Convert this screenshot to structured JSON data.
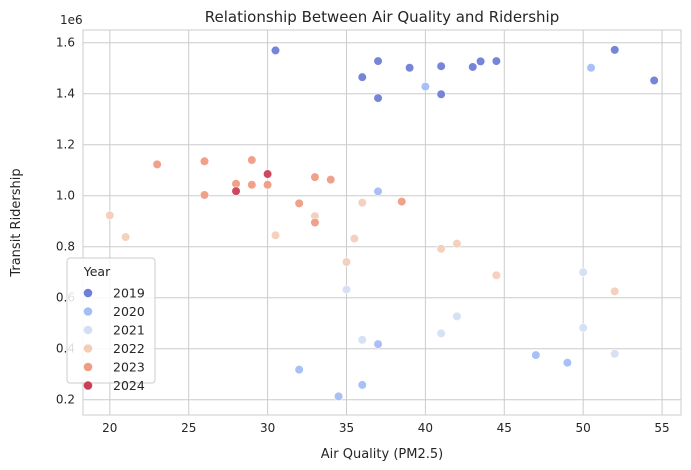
{
  "chart_data": {
    "type": "scatter",
    "title": "Relationship Between Air Quality and Ridership",
    "xlabel": "Air Quality (PM2.5)",
    "ylabel": "Transit Ridership",
    "y_offset_label": "1e6",
    "xlim": [
      18.3,
      56.2
    ],
    "ylim": [
      140000,
      1650000
    ],
    "x_ticks": [
      20,
      25,
      30,
      35,
      40,
      45,
      50,
      55
    ],
    "y_ticks": [
      200000,
      400000,
      600000,
      800000,
      1000000,
      1200000,
      1400000,
      1600000
    ],
    "y_tick_labels": [
      "0.2",
      "0.4",
      "0.6",
      "0.8",
      "1.0",
      "1.2",
      "1.4",
      "1.6"
    ],
    "grid": true,
    "legend": {
      "title": "Year",
      "placement": "lower-left"
    },
    "series": [
      {
        "name": "2019",
        "color": "#6f7ed6",
        "points": [
          [
            30.5,
            1570000
          ],
          [
            36,
            1465000
          ],
          [
            37,
            1528000
          ],
          [
            37,
            1383000
          ],
          [
            39,
            1502000
          ],
          [
            41,
            1508000
          ],
          [
            41,
            1398000
          ],
          [
            43,
            1505000
          ],
          [
            43.5,
            1527000
          ],
          [
            44.5,
            1528000
          ],
          [
            52,
            1572000
          ],
          [
            54.5,
            1452000
          ]
        ]
      },
      {
        "name": "2020",
        "color": "#a3bdf5",
        "points": [
          [
            40,
            1428000
          ],
          [
            50.5,
            1502000
          ],
          [
            37,
            1017000
          ],
          [
            32,
            318000
          ],
          [
            34.5,
            213000
          ],
          [
            36,
            258000
          ],
          [
            37,
            418000
          ],
          [
            47,
            375000
          ],
          [
            49,
            345000
          ]
        ]
      },
      {
        "name": "2021",
        "color": "#d4dff4",
        "points": [
          [
            35,
            632000
          ],
          [
            36,
            435000
          ],
          [
            41,
            460000
          ],
          [
            42,
            527000
          ],
          [
            50,
            700000
          ],
          [
            50,
            482000
          ],
          [
            52,
            380000
          ]
        ]
      },
      {
        "name": "2022",
        "color": "#f4cdb9",
        "points": [
          [
            20,
            923000
          ],
          [
            21,
            838000
          ],
          [
            30.5,
            845000
          ],
          [
            33,
            920000
          ],
          [
            35,
            740000
          ],
          [
            35.5,
            832000
          ],
          [
            36,
            973000
          ],
          [
            41,
            792000
          ],
          [
            42,
            812000
          ],
          [
            44.5,
            688000
          ],
          [
            52,
            625000
          ]
        ]
      },
      {
        "name": "2023",
        "color": "#ee9c84",
        "points": [
          [
            23,
            1123000
          ],
          [
            26,
            1135000
          ],
          [
            26,
            1003000
          ],
          [
            28,
            1047000
          ],
          [
            29,
            1140000
          ],
          [
            29,
            1043000
          ],
          [
            30,
            1043000
          ],
          [
            32,
            970000
          ],
          [
            33,
            1073000
          ],
          [
            33,
            895000
          ],
          [
            34,
            1063000
          ],
          [
            38.5,
            977000
          ]
        ]
      },
      {
        "name": "2024",
        "color": "#c93f58",
        "points": [
          [
            28,
            1018000
          ],
          [
            30,
            1085000
          ]
        ]
      }
    ]
  }
}
